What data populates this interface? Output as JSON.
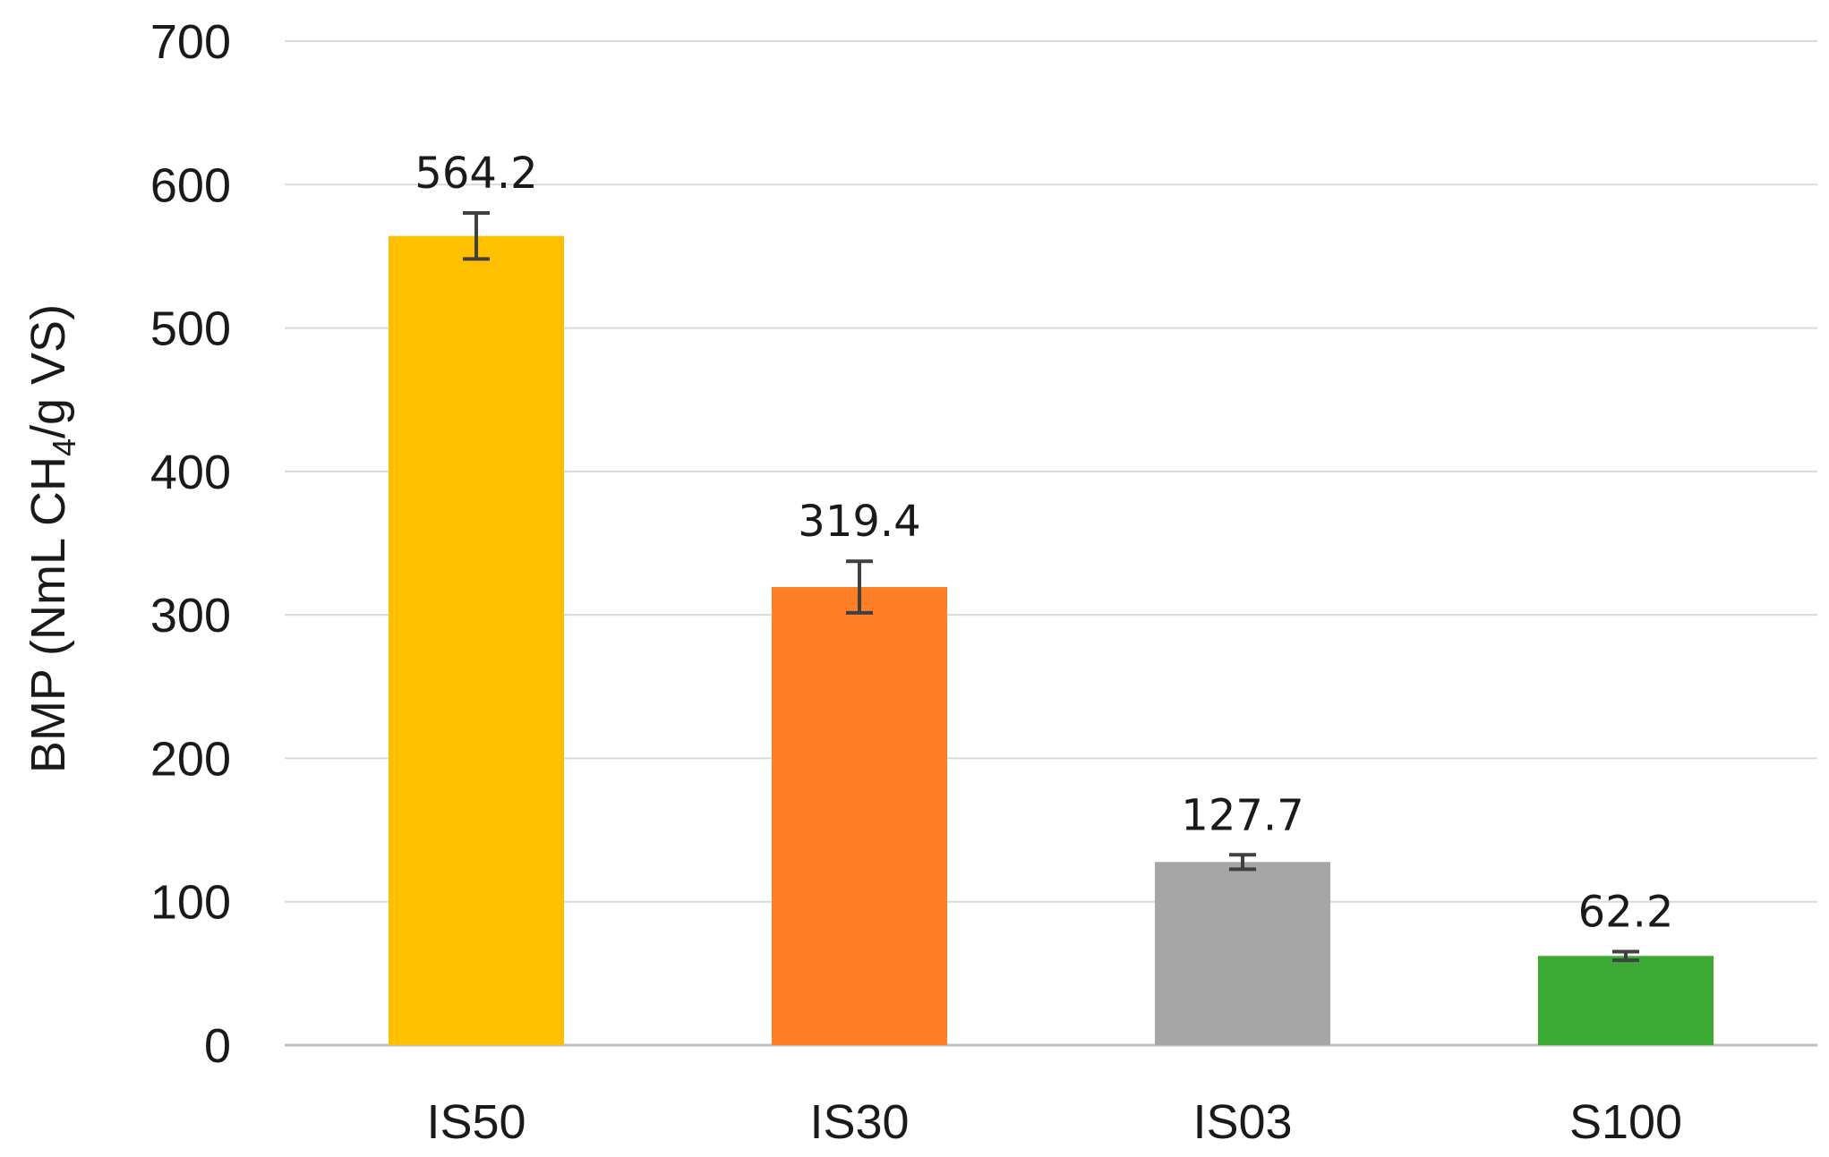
{
  "chart_data": {
    "type": "bar",
    "title": "",
    "xlabel": "",
    "ylabel": {
      "before_sub": "BMP (NmL CH",
      "subscript": "4",
      "after_sub": "/g VS)"
    },
    "categories": [
      "IS50",
      "IS30",
      "IS03",
      "S100"
    ],
    "values": [
      564.2,
      319.4,
      127.7,
      62.2
    ],
    "error_bars": [
      16,
      18,
      5,
      3
    ],
    "data_labels": [
      "564.2",
      "319.4",
      "127.7",
      "62.2"
    ],
    "bar_colors": [
      "#FFC000",
      "#FF7F27",
      "#A6A6A6",
      "#3DAA35"
    ],
    "ylim": [
      0,
      700
    ],
    "yticks": [
      0,
      100,
      200,
      300,
      400,
      500,
      600,
      700
    ],
    "grid": true,
    "legend": "none"
  }
}
